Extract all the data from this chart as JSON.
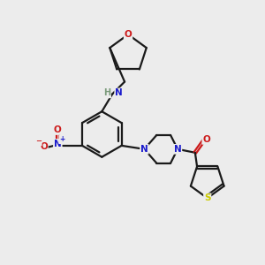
{
  "background_color": "#ececec",
  "bond_color": "#1a1a1a",
  "atom_colors": {
    "N": "#1a1acc",
    "O": "#cc1a1a",
    "S": "#cccc00",
    "H": "#7a9a7a",
    "C": "#1a1a1a"
  },
  "figsize": [
    3.0,
    3.0
  ],
  "dpi": 100
}
